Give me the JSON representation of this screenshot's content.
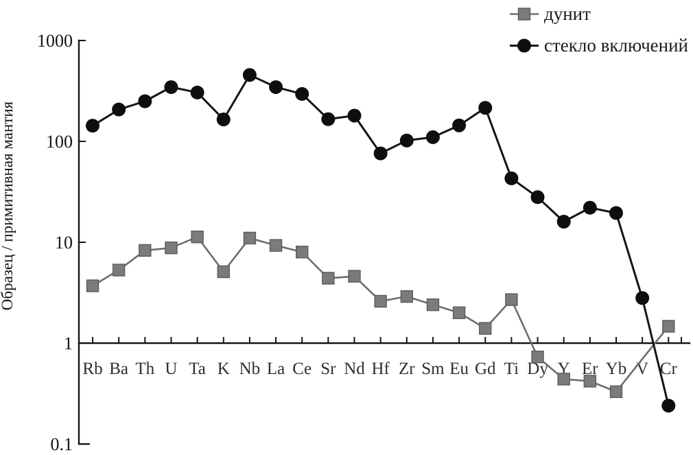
{
  "page": {
    "background": "#ffffff"
  },
  "chart_data": {
    "type": "line",
    "title": "",
    "xlabel": "",
    "ylabel": "Образец / примитивная мантия",
    "y_scale": "log",
    "ylim": [
      0.1,
      1000
    ],
    "y_tick_labels": [
      "1000",
      "100",
      "10",
      "1",
      "0.1"
    ],
    "y_tick_values": [
      1000,
      100,
      10,
      1,
      0.1
    ],
    "categories": [
      "Rb",
      "Ba",
      "Th",
      "U",
      "Ta",
      "K",
      "Nb",
      "La",
      "Ce",
      "Sr",
      "Nd",
      "Hf",
      "Zr",
      "Sm",
      "Eu",
      "Gd",
      "Ti",
      "Dy",
      "Y",
      "Er",
      "Yb",
      "V",
      "Cr"
    ],
    "grid": false,
    "legend_position": "top-right",
    "series": [
      {
        "name": "дунит",
        "marker": "square",
        "marker_color": "#7b7b7b",
        "marker_edge": "#5c5c5c",
        "line_color": "#6d6d6d",
        "line_width": 2.6,
        "values": [
          3.7,
          5.3,
          8.3,
          8.8,
          11.3,
          5.1,
          11.0,
          9.3,
          8.0,
          4.4,
          4.6,
          2.6,
          2.9,
          2.4,
          2.0,
          1.4,
          2.7,
          0.73,
          0.44,
          0.42,
          0.33,
          null,
          1.47
        ]
      },
      {
        "name": "стекло включений",
        "marker": "circle",
        "marker_color": "#0e0e0e",
        "marker_edge": "#0e0e0e",
        "line_color": "#141414",
        "line_width": 3,
        "values": [
          143,
          207,
          250,
          345,
          305,
          165,
          455,
          345,
          295,
          166,
          180,
          76,
          102,
          110,
          144,
          215,
          43,
          28,
          16,
          22,
          19.5,
          2.8,
          0.24
        ]
      }
    ],
    "colors": {
      "axis": "#161616",
      "y_tick_label": "#141414",
      "category_label": "#2f2f2f"
    }
  }
}
